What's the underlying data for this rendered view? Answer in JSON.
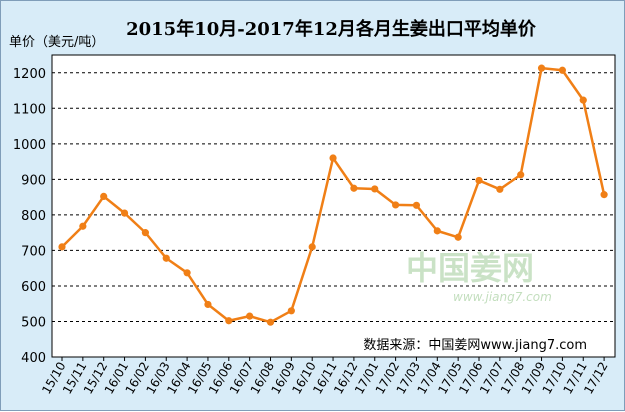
{
  "chart_data": {
    "type": "line",
    "title": "2015年10月-2017年12月各月生姜出口平均单价",
    "ylabel": "单价（美元/吨）",
    "xlabel": "",
    "categories": [
      "15/10",
      "15/11",
      "15/12",
      "16/01",
      "16/02",
      "16/03",
      "16/04",
      "16/05",
      "16/06",
      "16/07",
      "16/08",
      "16/09",
      "16/10",
      "16/11",
      "16/12",
      "17/01",
      "17/02",
      "17/03",
      "17/04",
      "17/05",
      "17/06",
      "17/07",
      "17/08",
      "17/09",
      "17/10",
      "17/11",
      "17/12"
    ],
    "series": [
      {
        "values": [
          710,
          768,
          852,
          805,
          750,
          678,
          637,
          548,
          502,
          515,
          498,
          530,
          710,
          960,
          875,
          873,
          828,
          827,
          755,
          737,
          897,
          872,
          913,
          1213,
          1207,
          1123,
          857
        ]
      }
    ],
    "ylim": [
      400,
      1250
    ],
    "yticks": [
      400,
      500,
      600,
      700,
      800,
      900,
      1000,
      1100,
      1200
    ],
    "grid": "horizontal dashed",
    "line_color": "#f07f16",
    "marker_color": "#f07f16"
  },
  "source_note": "数据来源：中国姜网www.jiang7.com",
  "watermark": {
    "name": "中国姜网",
    "url": "www.jiang7.com"
  }
}
